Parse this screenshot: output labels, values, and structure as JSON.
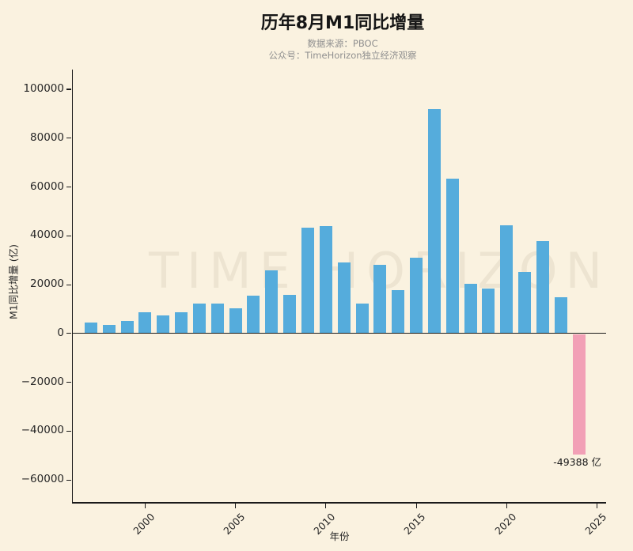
{
  "chart_data": {
    "type": "bar",
    "title": "历年8月M1同比增量",
    "subtitle_line1": "数据来源：PBOC",
    "subtitle_line2": "公众号：TimeHorizon独立经济观察",
    "watermark": "TIME HORIZON",
    "xlabel": "年份",
    "ylabel": "M1同比增量 (亿)",
    "categories": [
      1997,
      1998,
      1999,
      2000,
      2001,
      2002,
      2003,
      2004,
      2005,
      2006,
      2007,
      2008,
      2009,
      2010,
      2011,
      2012,
      2013,
      2014,
      2015,
      2016,
      2017,
      2018,
      2019,
      2020,
      2021,
      2022,
      2023,
      2024
    ],
    "values": [
      4500,
      3600,
      5000,
      8800,
      7400,
      8800,
      12200,
      12300,
      10400,
      15500,
      26000,
      15800,
      43500,
      44000,
      29200,
      12400,
      28200,
      17800,
      31000,
      91800,
      63500,
      20200,
      18500,
      44400,
      25300,
      37900,
      14900,
      -49388
    ],
    "annotation": "-49388 亿",
    "y_ticks": [
      {
        "value": 100000,
        "label": "100000"
      },
      {
        "value": 80000,
        "label": "80000"
      },
      {
        "value": 60000,
        "label": "60000"
      },
      {
        "value": 40000,
        "label": "40000"
      },
      {
        "value": 20000,
        "label": "20000"
      },
      {
        "value": 0,
        "label": "0"
      },
      {
        "value": -20000,
        "label": "−20000"
      },
      {
        "value": -40000,
        "label": "−40000"
      },
      {
        "value": -60000,
        "label": "−60000"
      }
    ],
    "x_ticks": [
      {
        "year": 2000,
        "label": "2000"
      },
      {
        "year": 2005,
        "label": "2005"
      },
      {
        "year": 2010,
        "label": "2010"
      },
      {
        "year": 2015,
        "label": "2015"
      },
      {
        "year": 2020,
        "label": "2020"
      },
      {
        "year": 2025,
        "label": "2025"
      }
    ],
    "ylim": [
      -69000,
      108100
    ],
    "legend": "none",
    "grid": false,
    "colors": {
      "positive": "#55ACDC",
      "negative": "#F2A0B6",
      "background": "#FAF2E0"
    }
  }
}
